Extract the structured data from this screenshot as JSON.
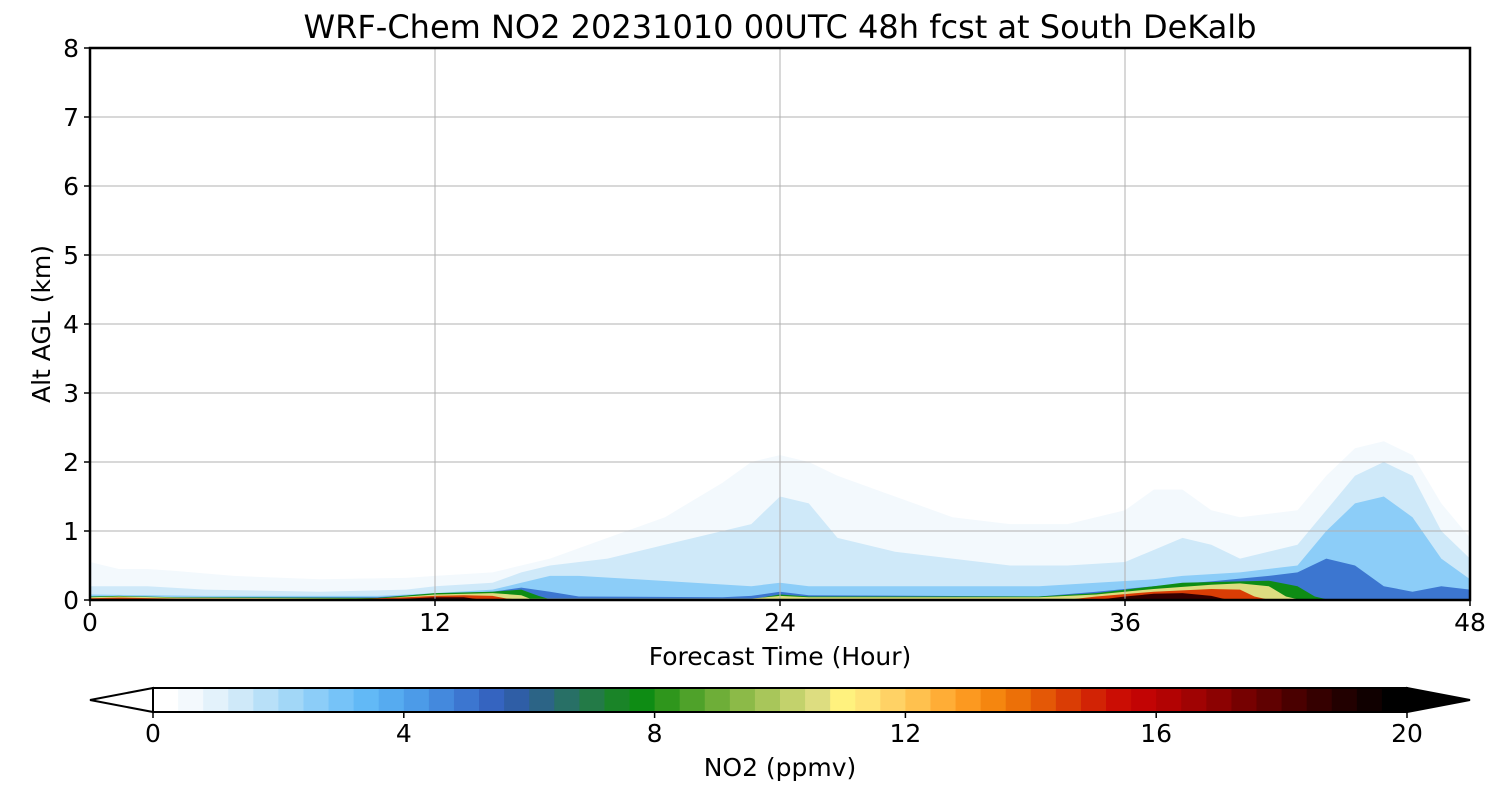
{
  "chart_data": {
    "type": "heatmap",
    "title": "WRF-Chem NO2  20231010 00UTC 48h fcst at South DeKalb",
    "xlabel": "Forecast Time (Hour)",
    "ylabel": "Alt AGL (km)",
    "xlim": [
      0,
      48
    ],
    "ylim": [
      0,
      8
    ],
    "xticks": [
      0,
      12,
      24,
      36,
      48
    ],
    "yticks": [
      0,
      1,
      2,
      3,
      4,
      5,
      6,
      7,
      8
    ],
    "grid": true,
    "colorbar": {
      "label": "NO2  (ppmv)",
      "min": 0,
      "max": 20,
      "ticks": [
        0,
        4,
        8,
        12,
        16,
        20
      ],
      "extend": "both",
      "orientation": "horizontal",
      "colors": [
        "#ffffff",
        "#f3f9fd",
        "#e3f2fb",
        "#cfe9f9",
        "#b8e0f8",
        "#a2d7f7",
        "#8ccdf8",
        "#76c3f8",
        "#62b9f6",
        "#56abf0",
        "#4c9be8",
        "#4489dd",
        "#3c76d0",
        "#3564c0",
        "#2f5ea6",
        "#2c6486",
        "#287066",
        "#237a47",
        "#1a8428",
        "#0e8c14",
        "#2f961c",
        "#4fa22a",
        "#6eae38",
        "#8cba48",
        "#a8c65a",
        "#c3d26c",
        "#dddd80",
        "#fff27e",
        "#ffe478",
        "#ffd265",
        "#ffc14e",
        "#ffad36",
        "#fc9920",
        "#f5860f",
        "#ec7008",
        "#e45806",
        "#da3d05",
        "#d22305",
        "#cb0d04",
        "#c20404",
        "#b20303",
        "#a00303",
        "#8c0202",
        "#760101",
        "#600101",
        "#4a0000",
        "#350000",
        "#220000",
        "#100000",
        "#000000"
      ],
      "under_color": "#ffffff",
      "over_color": "#000000"
    },
    "regions": [
      {
        "level": 0.6,
        "boundary": [
          [
            0,
            0.55
          ],
          [
            1,
            0.45
          ],
          [
            2,
            0.45
          ],
          [
            3,
            0.42
          ],
          [
            5,
            0.35
          ],
          [
            8,
            0.3
          ],
          [
            11,
            0.32
          ],
          [
            12,
            0.35
          ],
          [
            14,
            0.4
          ],
          [
            16,
            0.6
          ],
          [
            18,
            0.9
          ],
          [
            20,
            1.2
          ],
          [
            22,
            1.7
          ],
          [
            23,
            2.0
          ],
          [
            24,
            2.1
          ],
          [
            25,
            2.0
          ],
          [
            26,
            1.8
          ],
          [
            28,
            1.5
          ],
          [
            30,
            1.2
          ],
          [
            32,
            1.1
          ],
          [
            34,
            1.1
          ],
          [
            36,
            1.3
          ],
          [
            37,
            1.6
          ],
          [
            38,
            1.6
          ],
          [
            39,
            1.3
          ],
          [
            40,
            1.2
          ],
          [
            42,
            1.3
          ],
          [
            43,
            1.8
          ],
          [
            44,
            2.2
          ],
          [
            45,
            2.3
          ],
          [
            46,
            2.1
          ],
          [
            47,
            1.4
          ],
          [
            48,
            0.9
          ]
        ]
      },
      {
        "level": 1.4,
        "boundary": [
          [
            0,
            0.2
          ],
          [
            2,
            0.2
          ],
          [
            4,
            0.15
          ],
          [
            8,
            0.12
          ],
          [
            11,
            0.15
          ],
          [
            12,
            0.2
          ],
          [
            14,
            0.25
          ],
          [
            15,
            0.4
          ],
          [
            16,
            0.5
          ],
          [
            18,
            0.6
          ],
          [
            20,
            0.8
          ],
          [
            22,
            1.0
          ],
          [
            23,
            1.1
          ],
          [
            24,
            1.5
          ],
          [
            25,
            1.4
          ],
          [
            26,
            0.9
          ],
          [
            28,
            0.7
          ],
          [
            30,
            0.6
          ],
          [
            32,
            0.5
          ],
          [
            34,
            0.5
          ],
          [
            36,
            0.55
          ],
          [
            38,
            0.9
          ],
          [
            39,
            0.8
          ],
          [
            40,
            0.6
          ],
          [
            42,
            0.8
          ],
          [
            43,
            1.3
          ],
          [
            44,
            1.8
          ],
          [
            45,
            2.0
          ],
          [
            46,
            1.8
          ],
          [
            47,
            1.0
          ],
          [
            48,
            0.6
          ]
        ]
      },
      {
        "level": 2.8,
        "boundary": [
          [
            0,
            0.08
          ],
          [
            4,
            0.06
          ],
          [
            10,
            0.06
          ],
          [
            12,
            0.1
          ],
          [
            14,
            0.15
          ],
          [
            15,
            0.25
          ],
          [
            16,
            0.35
          ],
          [
            17,
            0.35
          ],
          [
            19,
            0.3
          ],
          [
            21,
            0.25
          ],
          [
            23,
            0.2
          ],
          [
            24,
            0.25
          ],
          [
            25,
            0.2
          ],
          [
            27,
            0.2
          ],
          [
            30,
            0.2
          ],
          [
            33,
            0.2
          ],
          [
            35,
            0.25
          ],
          [
            37,
            0.3
          ],
          [
            38,
            0.35
          ],
          [
            40,
            0.4
          ],
          [
            42,
            0.5
          ],
          [
            43,
            1.0
          ],
          [
            44,
            1.4
          ],
          [
            45,
            1.5
          ],
          [
            46,
            1.2
          ],
          [
            47,
            0.6
          ],
          [
            48,
            0.3
          ]
        ]
      },
      {
        "level": 4.8,
        "boundary": [
          [
            0,
            0.04
          ],
          [
            10,
            0.04
          ],
          [
            12,
            0.09
          ],
          [
            14,
            0.12
          ],
          [
            15,
            0.18
          ],
          [
            16,
            0.12
          ],
          [
            17,
            0.05
          ],
          [
            22,
            0.04
          ],
          [
            23,
            0.06
          ],
          [
            24,
            0.12
          ],
          [
            25,
            0.07
          ],
          [
            33,
            0.05
          ],
          [
            35,
            0.12
          ],
          [
            37,
            0.2
          ],
          [
            39,
            0.27
          ],
          [
            41,
            0.35
          ],
          [
            42,
            0.4
          ],
          [
            43,
            0.6
          ],
          [
            44,
            0.5
          ],
          [
            45,
            0.2
          ],
          [
            46,
            0.12
          ],
          [
            47,
            0.2
          ],
          [
            48,
            0.15
          ]
        ]
      },
      {
        "level": 7.6,
        "boundary": [
          [
            0,
            0.05
          ],
          [
            1,
            0.06
          ],
          [
            3,
            0.04
          ],
          [
            10,
            0.03
          ],
          [
            12,
            0.1
          ],
          [
            14,
            0.12
          ],
          [
            15,
            0.15
          ],
          [
            15.6,
            0.06
          ],
          [
            16,
            0.01
          ],
          [
            23,
            0.01
          ],
          [
            24,
            0.08
          ],
          [
            25,
            0.05
          ],
          [
            33,
            0.05
          ],
          [
            35,
            0.1
          ],
          [
            37,
            0.2
          ],
          [
            38,
            0.25
          ],
          [
            40,
            0.27
          ],
          [
            41,
            0.28
          ],
          [
            42,
            0.2
          ],
          [
            42.6,
            0.05
          ],
          [
            43,
            0.01
          ],
          [
            48,
            0.01
          ]
        ]
      },
      {
        "level": 10.4,
        "boundary": [
          [
            0,
            0.04
          ],
          [
            1,
            0.05
          ],
          [
            3,
            0.035
          ],
          [
            10,
            0.02
          ],
          [
            12,
            0.08
          ],
          [
            14,
            0.1
          ],
          [
            15,
            0.07
          ],
          [
            15.3,
            0.02
          ],
          [
            23,
            0.02
          ],
          [
            24,
            0.06
          ],
          [
            25,
            0.04
          ],
          [
            33,
            0.04
          ],
          [
            35,
            0.08
          ],
          [
            37,
            0.16
          ],
          [
            39,
            0.22
          ],
          [
            40,
            0.24
          ],
          [
            41,
            0.2
          ],
          [
            41.6,
            0.05
          ],
          [
            42,
            0.01
          ],
          [
            48,
            0.01
          ]
        ]
      },
      {
        "level": 14.5,
        "boundary": [
          [
            0,
            0.025
          ],
          [
            1,
            0.035
          ],
          [
            3,
            0.02
          ],
          [
            9,
            0.01
          ],
          [
            11,
            0.04
          ],
          [
            12,
            0.06
          ],
          [
            13,
            0.07
          ],
          [
            14,
            0.06
          ],
          [
            14.5,
            0.02
          ],
          [
            15,
            0.005
          ],
          [
            34,
            0.005
          ],
          [
            35,
            0.05
          ],
          [
            37,
            0.12
          ],
          [
            39,
            0.16
          ],
          [
            40,
            0.15
          ],
          [
            40.5,
            0.05
          ],
          [
            41,
            0.005
          ],
          [
            48,
            0.005
          ]
        ]
      },
      {
        "level": 18.5,
        "boundary": [
          [
            10,
            0.0
          ],
          [
            11,
            0.02
          ],
          [
            12,
            0.04
          ],
          [
            13,
            0.04
          ],
          [
            13.5,
            0.01
          ],
          [
            14,
            0.0
          ],
          [
            35,
            0.0
          ],
          [
            36,
            0.05
          ],
          [
            37,
            0.09
          ],
          [
            38,
            0.1
          ],
          [
            39,
            0.06
          ],
          [
            39.6,
            0.0
          ]
        ]
      }
    ]
  }
}
